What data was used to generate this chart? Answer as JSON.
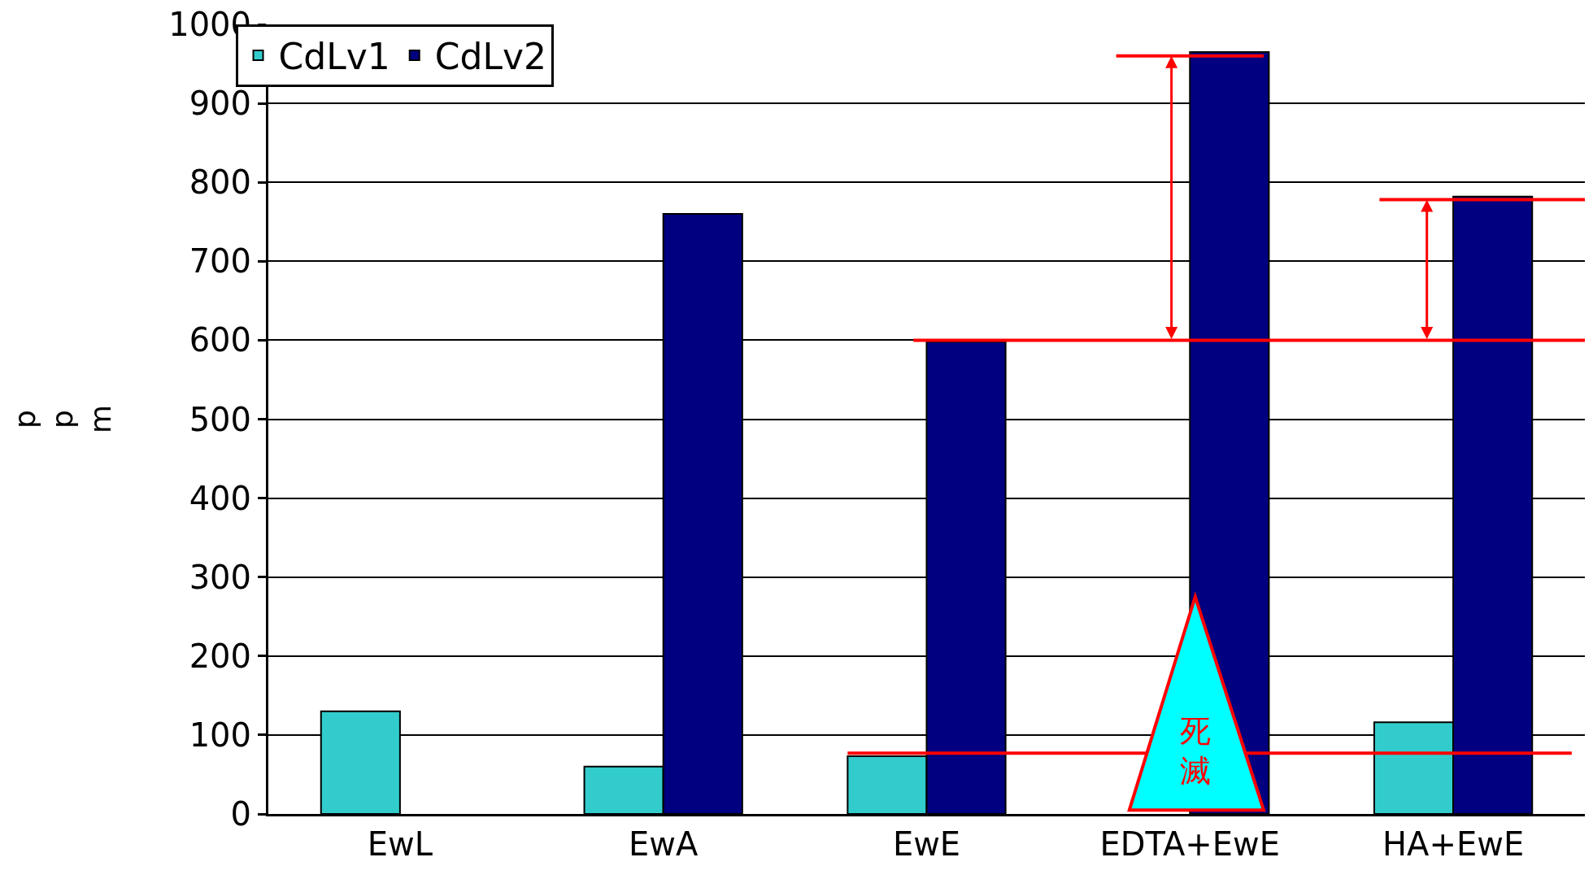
{
  "chart_data": {
    "type": "bar",
    "categories": [
      "EwL",
      "EwA",
      "EwE",
      "EDTA+EwE",
      "HA+EwE"
    ],
    "series": [
      {
        "name": "CdLv1",
        "color": "#33cccc",
        "values": [
          130,
          60,
          73,
          null,
          116
        ]
      },
      {
        "name": "CdLv2",
        "color": "#000080",
        "values": [
          null,
          760,
          598,
          965,
          782
        ]
      }
    ],
    "ylabel": "ppm",
    "ylim": [
      0,
      1000
    ],
    "yticks": [
      0,
      100,
      200,
      300,
      400,
      500,
      600,
      700,
      800,
      900,
      1000
    ],
    "grid": "y",
    "legend": "top left",
    "ref_lines": [
      {
        "axis": "y",
        "value": 600,
        "label": null,
        "color": "#ff0000"
      },
      {
        "axis": "y",
        "value": 77,
        "label": null,
        "color": "#ff0000"
      },
      {
        "axis": "y",
        "value": 960,
        "label": null,
        "color": "#ff0000"
      },
      {
        "axis": "y",
        "value": 778,
        "label": null,
        "color": "#ff0000"
      }
    ],
    "annotations": [
      "死滅"
    ]
  }
}
